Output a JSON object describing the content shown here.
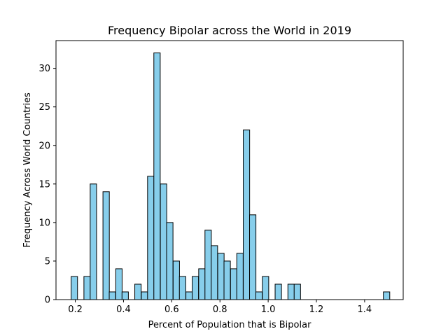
{
  "chart_data": {
    "type": "bar",
    "title": "Frequency Bipolar across the World in 2019",
    "xlabel": "Percent of Population that is Bipolar",
    "ylabel": "Frequency Across World Countries",
    "xlim": [
      0.12,
      1.56
    ],
    "ylim": [
      0,
      33.6
    ],
    "xticks": [
      "0.2",
      "0.4",
      "0.6",
      "0.8",
      "1.0",
      "1.2",
      "1.4"
    ],
    "yticks": [
      "0",
      "5",
      "10",
      "15",
      "20",
      "25",
      "30"
    ],
    "bin_width": 0.0264,
    "bins": [
      {
        "x": 0.196,
        "count": 3
      },
      {
        "x": 0.249,
        "count": 3
      },
      {
        "x": 0.275,
        "count": 15
      },
      {
        "x": 0.328,
        "count": 14
      },
      {
        "x": 0.354,
        "count": 1
      },
      {
        "x": 0.381,
        "count": 4
      },
      {
        "x": 0.407,
        "count": 1
      },
      {
        "x": 0.46,
        "count": 2
      },
      {
        "x": 0.487,
        "count": 1
      },
      {
        "x": 0.513,
        "count": 16
      },
      {
        "x": 0.539,
        "count": 32
      },
      {
        "x": 0.566,
        "count": 15
      },
      {
        "x": 0.592,
        "count": 10
      },
      {
        "x": 0.619,
        "count": 5
      },
      {
        "x": 0.645,
        "count": 3
      },
      {
        "x": 0.672,
        "count": 1
      },
      {
        "x": 0.698,
        "count": 3
      },
      {
        "x": 0.725,
        "count": 4
      },
      {
        "x": 0.751,
        "count": 9
      },
      {
        "x": 0.777,
        "count": 7
      },
      {
        "x": 0.804,
        "count": 6
      },
      {
        "x": 0.83,
        "count": 5
      },
      {
        "x": 0.857,
        "count": 4
      },
      {
        "x": 0.883,
        "count": 6
      },
      {
        "x": 0.91,
        "count": 22
      },
      {
        "x": 0.936,
        "count": 11
      },
      {
        "x": 0.962,
        "count": 1
      },
      {
        "x": 0.989,
        "count": 3
      },
      {
        "x": 1.042,
        "count": 2
      },
      {
        "x": 1.095,
        "count": 2
      },
      {
        "x": 1.121,
        "count": 2
      },
      {
        "x": 1.491,
        "count": 1
      }
    ],
    "bar_color": "#87ceeb",
    "edge_color": "#000000",
    "grid": false,
    "legend": "none"
  }
}
